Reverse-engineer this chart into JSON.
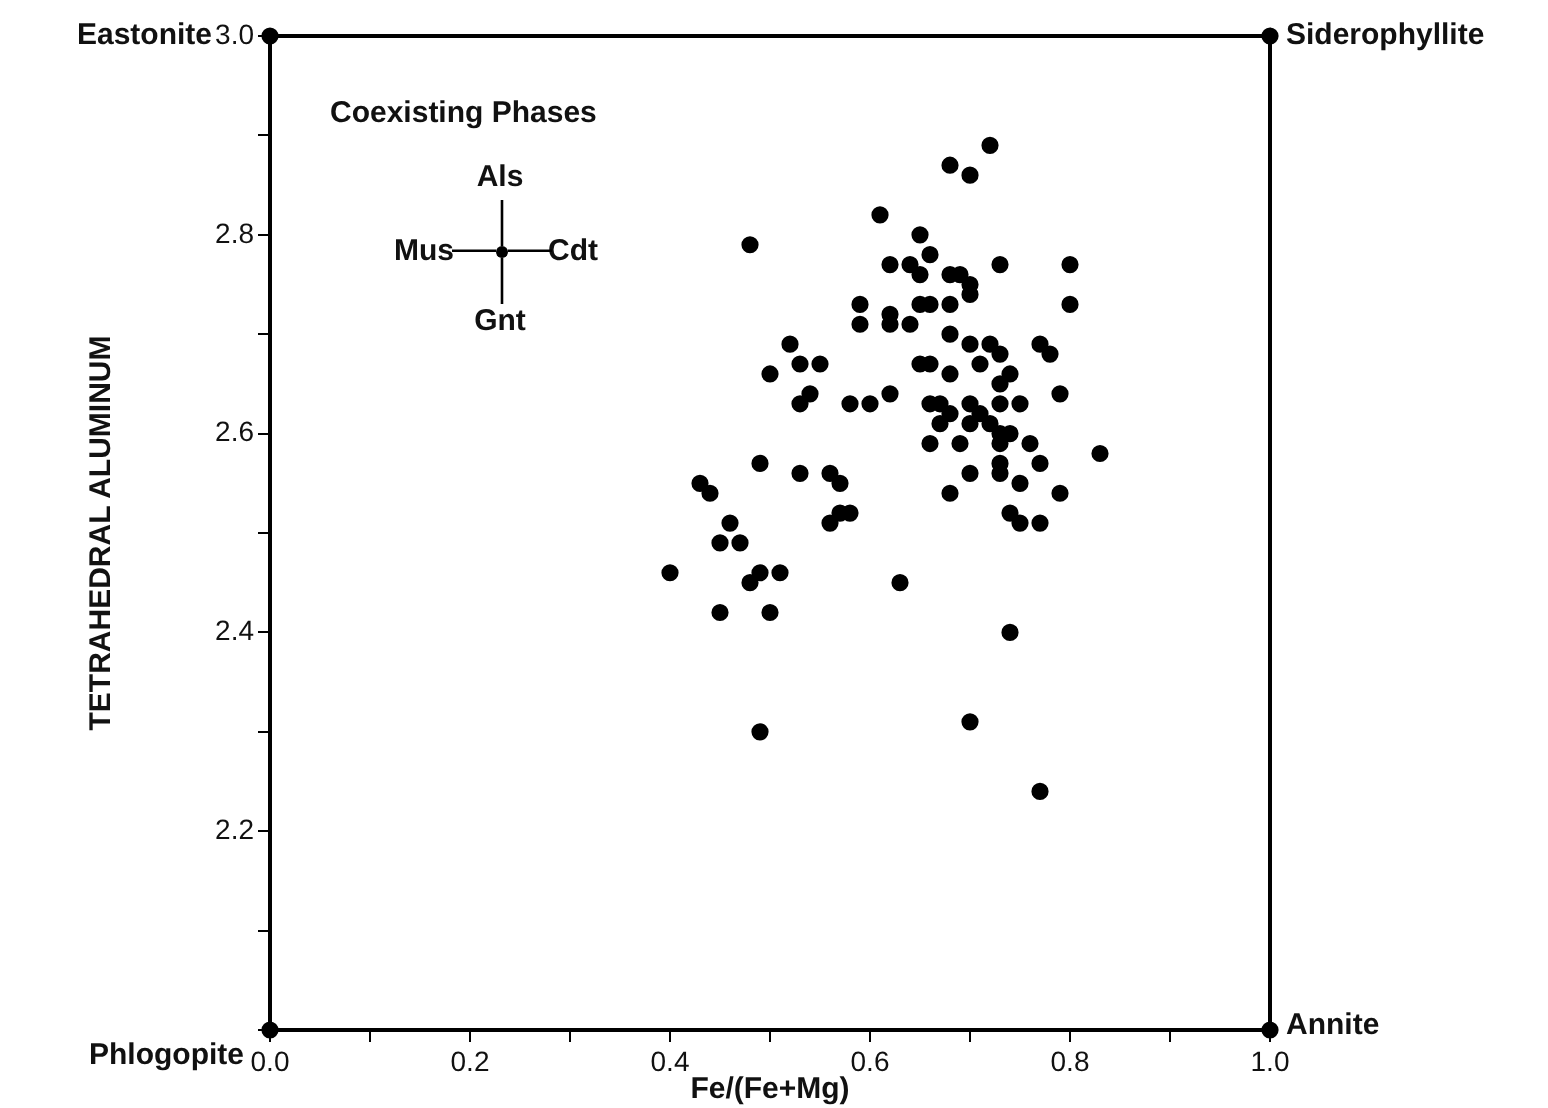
{
  "chart_data": {
    "type": "scatter",
    "xlabel": "Fe/(Fe+Mg)",
    "ylabel": "TETRAHEDRAL ALUMINUM",
    "xlim": [
      0,
      1
    ],
    "ylim": [
      2,
      3
    ],
    "xticks": [
      {
        "value": 0,
        "label": "0.0"
      },
      {
        "value": 0.1,
        "label": null
      },
      0.2,
      {
        "value": 0.3,
        "label": null
      },
      0.4,
      {
        "value": 0.5,
        "label": null
      },
      0.6,
      {
        "value": 0.7,
        "label": null
      },
      0.8,
      {
        "value": 0.9,
        "label": null
      },
      {
        "value": 1,
        "label": "1.0"
      }
    ],
    "yticks": [
      {
        "value": 2,
        "label": null
      },
      {
        "value": 2.1,
        "label": null
      },
      2.2,
      {
        "value": 2.3,
        "label": null
      },
      2.4,
      {
        "value": 2.5,
        "label": null
      },
      2.6,
      {
        "value": 2.7,
        "label": null
      },
      2.8,
      {
        "value": 2.9,
        "label": null
      },
      {
        "value": 3,
        "label": "3.0"
      }
    ],
    "grid": false,
    "legend": false,
    "marker": "circle",
    "annotations": [
      "Coexisting Phases",
      "Als",
      "Mus",
      "Cdt",
      "Gnt"
    ],
    "series": [
      {
        "color": "#000000",
        "x": [
          0,
          1,
          0,
          1
        ],
        "values": [
          3,
          3,
          2,
          2
        ],
        "value_labels": [
          "Eastonite",
          "Siderophyllite",
          "Phlogopite",
          "Annite"
        ]
      },
      {
        "color": "#000000",
        "x": [
          0.72,
          0.68,
          0.7,
          0.61,
          0.48,
          0.65,
          0.66,
          0.73,
          0.62,
          0.64,
          0.65,
          0.68,
          0.69,
          0.7,
          0.7,
          0.68,
          0.65,
          0.66,
          0.59,
          0.62,
          0.62,
          0.64,
          0.59,
          0.68,
          0.52,
          0.7,
          0.72,
          0.71,
          0.73,
          0.77,
          0.8,
          0.8,
          0.78,
          0.74,
          0.75,
          0.79,
          0.74,
          0.76,
          0.83,
          0.53,
          0.55,
          0.5,
          0.65,
          0.66,
          0.68,
          0.73,
          0.54,
          0.53,
          0.58,
          0.6,
          0.62,
          0.66,
          0.67,
          0.68,
          0.7,
          0.71,
          0.73,
          0.67,
          0.7,
          0.72,
          0.73,
          0.66,
          0.69,
          0.73,
          0.49,
          0.53,
          0.56,
          0.57,
          0.43,
          0.44,
          0.57,
          0.56,
          0.58,
          0.46,
          0.45,
          0.47,
          0.4,
          0.49,
          0.51,
          0.48,
          0.63,
          0.45,
          0.5,
          0.49,
          0.74,
          0.7,
          0.77,
          0.68,
          0.7,
          0.73,
          0.73,
          0.75,
          0.74,
          0.75,
          0.77,
          0.77,
          0.79
        ],
        "values": [
          2.89,
          2.87,
          2.86,
          2.82,
          2.79,
          2.8,
          2.78,
          2.77,
          2.77,
          2.77,
          2.76,
          2.76,
          2.76,
          2.75,
          2.74,
          2.73,
          2.73,
          2.73,
          2.73,
          2.72,
          2.71,
          2.71,
          2.71,
          2.7,
          2.69,
          2.69,
          2.69,
          2.67,
          2.68,
          2.69,
          2.77,
          2.73,
          2.68,
          2.66,
          2.63,
          2.64,
          2.6,
          2.59,
          2.58,
          2.67,
          2.67,
          2.66,
          2.67,
          2.67,
          2.66,
          2.65,
          2.64,
          2.63,
          2.63,
          2.63,
          2.64,
          2.63,
          2.63,
          2.62,
          2.63,
          2.62,
          2.63,
          2.61,
          2.61,
          2.61,
          2.6,
          2.59,
          2.59,
          2.59,
          2.57,
          2.56,
          2.56,
          2.55,
          2.55,
          2.54,
          2.52,
          2.51,
          2.52,
          2.51,
          2.49,
          2.49,
          2.46,
          2.46,
          2.46,
          2.45,
          2.45,
          2.42,
          2.42,
          2.3,
          2.4,
          2.31,
          2.24,
          2.54,
          2.56,
          2.57,
          2.56,
          2.55,
          2.52,
          2.51,
          2.51,
          2.57,
          2.54
        ]
      }
    ]
  }
}
